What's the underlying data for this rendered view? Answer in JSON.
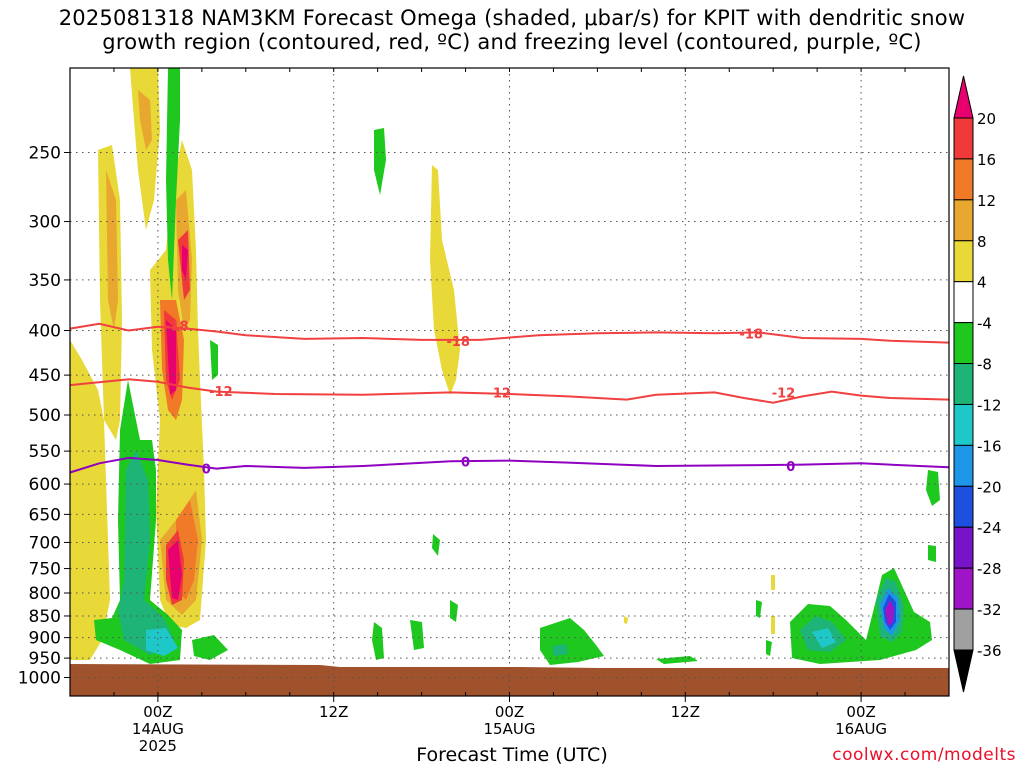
{
  "title": {
    "line1": "2025081318 NAM3KM Forecast Omega (shaded, μbar/s) for KPIT with dendritic snow",
    "line2": "growth region (contoured, red, ºC) and freezing level (contoured, purple, ºC)"
  },
  "credit": "coolwx.com/modelts",
  "chart_data": {
    "type": "time-height",
    "xlabel": "Forecast Time (UTC)",
    "ylabel": "",
    "y_scale": "pressure",
    "y_inverted": true,
    "y_ticks": [
      250,
      300,
      350,
      400,
      450,
      500,
      550,
      600,
      650,
      700,
      750,
      800,
      850,
      900,
      950,
      1000
    ],
    "ylim_hPa": [
      200,
      1050
    ],
    "xlim_hours": [
      0,
      60
    ],
    "x_ticks": [
      {
        "hour": 6,
        "line1": "00Z",
        "line2": "14AUG",
        "line3": "2025"
      },
      {
        "hour": 18,
        "line1": "12Z",
        "line2": "",
        "line3": ""
      },
      {
        "hour": 30,
        "line1": "00Z",
        "line2": "15AUG",
        "line3": ""
      },
      {
        "hour": 42,
        "line1": "12Z",
        "line2": "",
        "line3": ""
      },
      {
        "hour": 54,
        "line1": "00Z",
        "line2": "16AUG",
        "line3": ""
      }
    ],
    "grid": true,
    "colorbar": {
      "labels": [
        "20",
        "16",
        "12",
        "8",
        "4",
        "-4",
        "-8",
        "-12",
        "-16",
        "-20",
        "-24",
        "-28",
        "-32",
        "-36"
      ],
      "colors": [
        "#e8006e",
        "#f03a3a",
        "#f07a28",
        "#e8a830",
        "#e8d838",
        "#ffffff",
        "#1ec81e",
        "#1eb478",
        "#1ec8c8",
        "#1e96e8",
        "#1e50e0",
        "#7814c8",
        "#a014c8",
        "#a0a0a0",
        "#000000"
      ]
    },
    "contours": [
      {
        "name": "-18",
        "color": "#f04040",
        "points": [
          [
            0,
            398
          ],
          [
            2,
            393
          ],
          [
            4,
            400
          ],
          [
            6,
            396
          ],
          [
            8,
            398
          ],
          [
            10,
            401
          ],
          [
            12,
            405
          ],
          [
            16,
            409
          ],
          [
            20,
            408
          ],
          [
            24,
            410
          ],
          [
            28,
            410
          ],
          [
            32,
            405
          ],
          [
            36,
            403
          ],
          [
            40,
            402
          ],
          [
            44,
            403
          ],
          [
            47,
            402
          ],
          [
            50,
            408
          ],
          [
            54,
            409
          ],
          [
            56,
            411
          ],
          [
            60,
            413
          ]
        ],
        "labels": [
          {
            "hour": 7.3,
            "hPa": 395
          },
          {
            "hour": 26.5,
            "hPa": 411
          },
          {
            "hour": 46.5,
            "hPa": 403
          }
        ]
      },
      {
        "name": "-12",
        "color": "#f04040",
        "points": [
          [
            0,
            462
          ],
          [
            4,
            455
          ],
          [
            6,
            458
          ],
          [
            8,
            465
          ],
          [
            10,
            470
          ],
          [
            14,
            473
          ],
          [
            20,
            474
          ],
          [
            26,
            471
          ],
          [
            30,
            473
          ],
          [
            34,
            476
          ],
          [
            38,
            480
          ],
          [
            40,
            474
          ],
          [
            44,
            471
          ],
          [
            46,
            478
          ],
          [
            48,
            484
          ],
          [
            50,
            476
          ],
          [
            52,
            470
          ],
          [
            54,
            475
          ],
          [
            56,
            478
          ],
          [
            60,
            480
          ]
        ],
        "labels": [
          {
            "hour": 10.3,
            "hPa": 469
          },
          {
            "hour": 29.3,
            "hPa": 471
          },
          {
            "hour": 48.7,
            "hPa": 471
          }
        ]
      },
      {
        "name": "0",
        "color": "#9000c0",
        "points": [
          [
            0,
            582
          ],
          [
            2,
            568
          ],
          [
            4,
            560
          ],
          [
            6,
            563
          ],
          [
            8,
            570
          ],
          [
            10,
            576
          ],
          [
            12,
            572
          ],
          [
            16,
            575
          ],
          [
            20,
            572
          ],
          [
            26,
            565
          ],
          [
            30,
            564
          ],
          [
            34,
            567
          ],
          [
            40,
            572
          ],
          [
            46,
            571
          ],
          [
            50,
            570
          ],
          [
            54,
            568
          ],
          [
            58,
            572
          ],
          [
            60,
            574
          ]
        ],
        "labels": [
          {
            "hour": 9.3,
            "hPa": 576
          },
          {
            "hour": 27.0,
            "hPa": 565
          },
          {
            "hour": 49.2,
            "hPa": 572
          }
        ]
      }
    ],
    "terrain_hPa": 970,
    "terrain_color": "#a0522d"
  }
}
